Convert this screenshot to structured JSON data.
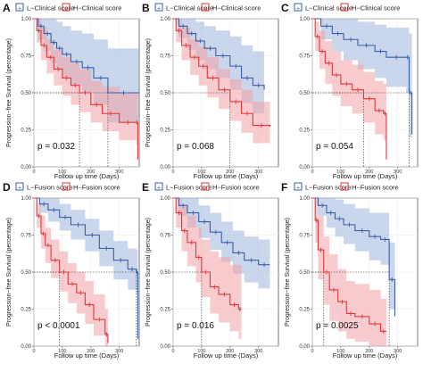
{
  "figure": {
    "common": {
      "xlabel": "Follow up time (Days)",
      "ylabel": "Progression−free Survival (percentage)",
      "xticks": [
        0,
        100,
        200,
        300
      ],
      "yticks": [
        "0.00",
        "0.25",
        "0.50",
        "0.75",
        "1.00"
      ],
      "colors": {
        "low": "#3a5fa6",
        "high": "#e0363a",
        "low_band": "#9fb4dc",
        "high_band": "#f3a3a6"
      }
    }
  },
  "chart_data": [
    {
      "type": "line",
      "panel": "A",
      "xlabel": "Follow up time (Days)",
      "ylabel": "Progression−free Survival (percentage)",
      "xlim": [
        0,
        370
      ],
      "ylim": [
        0,
        1
      ],
      "legend": [
        "L−Clinical score",
        "H−Clinical score"
      ],
      "legend_position": "top",
      "pvalue": "p = 0.032",
      "series": [
        {
          "name": "L−Clinical score",
          "x": [
            0,
            15,
            35,
            60,
            80,
            100,
            130,
            170,
            210,
            260,
            370
          ],
          "y": [
            1,
            0.95,
            0.9,
            0.84,
            0.8,
            0.76,
            0.71,
            0.67,
            0.6,
            0.5,
            0.5
          ],
          "lo": [
            1,
            0.86,
            0.78,
            0.7,
            0.66,
            0.6,
            0.55,
            0.5,
            0.42,
            0.3,
            0.3
          ],
          "hi": [
            1,
            1,
            1,
            1,
            0.98,
            0.95,
            0.92,
            0.9,
            0.86,
            0.8,
            0.8
          ]
        },
        {
          "name": "H−Clinical score",
          "x": [
            0,
            10,
            25,
            45,
            70,
            100,
            130,
            160,
            200,
            240,
            300,
            360,
            365
          ],
          "y": [
            1,
            0.92,
            0.82,
            0.74,
            0.66,
            0.6,
            0.55,
            0.5,
            0.42,
            0.36,
            0.3,
            0.3,
            0.05
          ],
          "lo": [
            1,
            0.84,
            0.72,
            0.63,
            0.55,
            0.48,
            0.42,
            0.37,
            0.3,
            0.24,
            0.18,
            0.15,
            0.0
          ],
          "hi": [
            1,
            1,
            0.94,
            0.86,
            0.79,
            0.74,
            0.7,
            0.66,
            0.58,
            0.54,
            0.5,
            0.5,
            0.3
          ]
        }
      ]
    },
    {
      "type": "line",
      "panel": "B",
      "xlabel": "Follow up time (Days)",
      "ylabel": "Progression−free Survival (percentage)",
      "xlim": [
        0,
        370
      ],
      "ylim": [
        0,
        1
      ],
      "legend": [
        "L−Clinical score",
        "H−Clinical score"
      ],
      "legend_position": "top",
      "pvalue": "p = 0.068",
      "series": [
        {
          "name": "L−Clinical score",
          "x": [
            0,
            20,
            50,
            80,
            110,
            150,
            200,
            240,
            280,
            320
          ],
          "y": [
            1,
            0.95,
            0.9,
            0.85,
            0.8,
            0.75,
            0.68,
            0.6,
            0.55,
            0.52
          ],
          "lo": [
            1,
            0.87,
            0.79,
            0.72,
            0.66,
            0.6,
            0.52,
            0.43,
            0.36,
            0.32
          ],
          "hi": [
            1,
            1,
            1,
            0.98,
            0.95,
            0.92,
            0.88,
            0.82,
            0.78,
            0.76
          ]
        },
        {
          "name": "H−Clinical score",
          "x": [
            0,
            10,
            30,
            60,
            90,
            120,
            160,
            200,
            240,
            280,
            340
          ],
          "y": [
            1,
            0.92,
            0.82,
            0.74,
            0.68,
            0.6,
            0.52,
            0.44,
            0.36,
            0.28,
            0.27
          ],
          "lo": [
            1,
            0.84,
            0.72,
            0.62,
            0.55,
            0.47,
            0.39,
            0.31,
            0.23,
            0.16,
            0.15
          ],
          "hi": [
            1,
            1,
            0.94,
            0.86,
            0.81,
            0.74,
            0.66,
            0.59,
            0.52,
            0.44,
            0.43
          ]
        }
      ]
    },
    {
      "type": "line",
      "panel": "C",
      "xlabel": "Follow up time (Days)",
      "ylabel": "",
      "xlim": [
        0,
        370
      ],
      "ylim": [
        0,
        1
      ],
      "legend": [
        "L−Clinical score",
        "H−Clinical score"
      ],
      "legend_position": "top",
      "pvalue": "p = 0.054",
      "series": [
        {
          "name": "L−Clinical score",
          "x": [
            0,
            30,
            70,
            110,
            160,
            220,
            260,
            330,
            340,
            350
          ],
          "y": [
            1,
            0.95,
            0.9,
            0.86,
            0.82,
            0.78,
            0.74,
            0.74,
            0.5,
            0.22
          ],
          "lo": [
            1,
            0.86,
            0.78,
            0.72,
            0.66,
            0.6,
            0.54,
            0.5,
            0.2,
            0.05
          ],
          "hi": [
            1,
            1,
            1,
            1,
            0.98,
            0.96,
            0.94,
            0.94,
            0.9,
            0.6
          ]
        },
        {
          "name": "H−Clinical score",
          "x": [
            0,
            10,
            25,
            45,
            70,
            100,
            140,
            180,
            220,
            250,
            260
          ],
          "y": [
            1,
            0.88,
            0.78,
            0.7,
            0.62,
            0.56,
            0.52,
            0.46,
            0.38,
            0.36,
            0.05
          ],
          "lo": [
            1,
            0.78,
            0.66,
            0.56,
            0.48,
            0.41,
            0.36,
            0.3,
            0.22,
            0.18,
            0.0
          ],
          "hi": [
            1,
            0.98,
            0.92,
            0.85,
            0.78,
            0.72,
            0.69,
            0.64,
            0.58,
            0.56,
            0.3
          ]
        }
      ]
    },
    {
      "type": "line",
      "panel": "D",
      "xlabel": "Follow up time (Days)",
      "ylabel": "Progression−free Survival (percentage)",
      "xlim": [
        0,
        370
      ],
      "ylim": [
        0,
        1
      ],
      "legend": [
        "L−Fusion score",
        "H−Fusion score"
      ],
      "legend_position": "top",
      "pvalue": "p < 0.0001",
      "series": [
        {
          "name": "L−Fusion score",
          "x": [
            0,
            20,
            50,
            90,
            130,
            180,
            230,
            280,
            330,
            360,
            365
          ],
          "y": [
            1,
            0.96,
            0.92,
            0.87,
            0.82,
            0.75,
            0.66,
            0.58,
            0.52,
            0.5,
            0.05
          ],
          "lo": [
            1,
            0.9,
            0.84,
            0.78,
            0.72,
            0.64,
            0.54,
            0.45,
            0.38,
            0.35,
            0.0
          ],
          "hi": [
            1,
            1,
            1,
            0.96,
            0.92,
            0.86,
            0.78,
            0.71,
            0.66,
            0.65,
            0.3
          ]
        },
        {
          "name": "H−Fusion score",
          "x": [
            0,
            10,
            25,
            40,
            60,
            90,
            120,
            150,
            180,
            210,
            250,
            260
          ],
          "y": [
            1,
            0.88,
            0.76,
            0.68,
            0.58,
            0.5,
            0.42,
            0.36,
            0.28,
            0.18,
            0.08,
            0.02
          ],
          "lo": [
            1,
            0.8,
            0.66,
            0.56,
            0.46,
            0.37,
            0.29,
            0.22,
            0.15,
            0.07,
            0.0,
            0.0
          ],
          "hi": [
            1,
            0.96,
            0.88,
            0.8,
            0.72,
            0.64,
            0.56,
            0.5,
            0.44,
            0.35,
            0.25,
            0.2
          ]
        }
      ]
    },
    {
      "type": "line",
      "panel": "E",
      "xlabel": "Follow up time (Days)",
      "ylabel": "Progression−free Survival (percentage)",
      "xlim": [
        0,
        370
      ],
      "ylim": [
        0,
        1
      ],
      "legend": [
        "L−Fusion score",
        "H−Fusion score"
      ],
      "legend_position": "top",
      "pvalue": "p = 0.016",
      "series": [
        {
          "name": "L−Fusion score",
          "x": [
            0,
            20,
            50,
            90,
            130,
            170,
            210,
            250,
            300,
            340
          ],
          "y": [
            1,
            0.95,
            0.9,
            0.84,
            0.77,
            0.7,
            0.63,
            0.58,
            0.55,
            0.55
          ],
          "lo": [
            1,
            0.88,
            0.8,
            0.73,
            0.65,
            0.57,
            0.49,
            0.43,
            0.39,
            0.39
          ],
          "hi": [
            1,
            1,
            1,
            0.95,
            0.9,
            0.84,
            0.78,
            0.74,
            0.72,
            0.72
          ]
        },
        {
          "name": "H−Fusion score",
          "x": [
            0,
            10,
            30,
            50,
            80,
            100,
            130,
            160,
            200,
            230,
            240
          ],
          "y": [
            1,
            0.9,
            0.78,
            0.7,
            0.6,
            0.5,
            0.4,
            0.35,
            0.28,
            0.25,
            0.25
          ],
          "lo": [
            1,
            0.8,
            0.64,
            0.54,
            0.43,
            0.33,
            0.22,
            0.16,
            0.1,
            0.05,
            0.05
          ],
          "hi": [
            1,
            1,
            0.94,
            0.88,
            0.8,
            0.72,
            0.64,
            0.6,
            0.55,
            0.55,
            0.55
          ]
        }
      ]
    },
    {
      "type": "line",
      "panel": "F",
      "xlabel": "Follow up time (Days)",
      "ylabel": "Progression−free Survival (percentage)",
      "xlim": [
        0,
        370
      ],
      "ylim": [
        0,
        1
      ],
      "legend": [
        "L−Fusion score",
        "H−Fusion score"
      ],
      "legend_position": "top",
      "pvalue": "p = 0.0025",
      "series": [
        {
          "name": "L−Fusion score",
          "x": [
            0,
            20,
            50,
            80,
            110,
            150,
            200,
            240,
            270,
            290
          ],
          "y": [
            1,
            0.95,
            0.9,
            0.86,
            0.82,
            0.78,
            0.74,
            0.72,
            0.45,
            0.2
          ],
          "lo": [
            1,
            0.88,
            0.8,
            0.74,
            0.69,
            0.64,
            0.58,
            0.55,
            0.25,
            0.05
          ],
          "hi": [
            1,
            1,
            1,
            0.99,
            0.96,
            0.93,
            0.9,
            0.9,
            0.7,
            0.45
          ]
        },
        {
          "name": "H−Fusion score",
          "x": [
            0,
            10,
            20,
            40,
            60,
            90,
            120,
            150,
            200,
            240,
            260
          ],
          "y": [
            1,
            0.85,
            0.65,
            0.5,
            0.38,
            0.3,
            0.22,
            0.2,
            0.15,
            0.1,
            0.1
          ],
          "lo": [
            1,
            0.7,
            0.45,
            0.28,
            0.17,
            0.1,
            0.05,
            0.03,
            0.0,
            0.0,
            0.0
          ],
          "hi": [
            1,
            1,
            0.88,
            0.74,
            0.62,
            0.52,
            0.44,
            0.42,
            0.38,
            0.32,
            0.32
          ]
        }
      ]
    }
  ]
}
